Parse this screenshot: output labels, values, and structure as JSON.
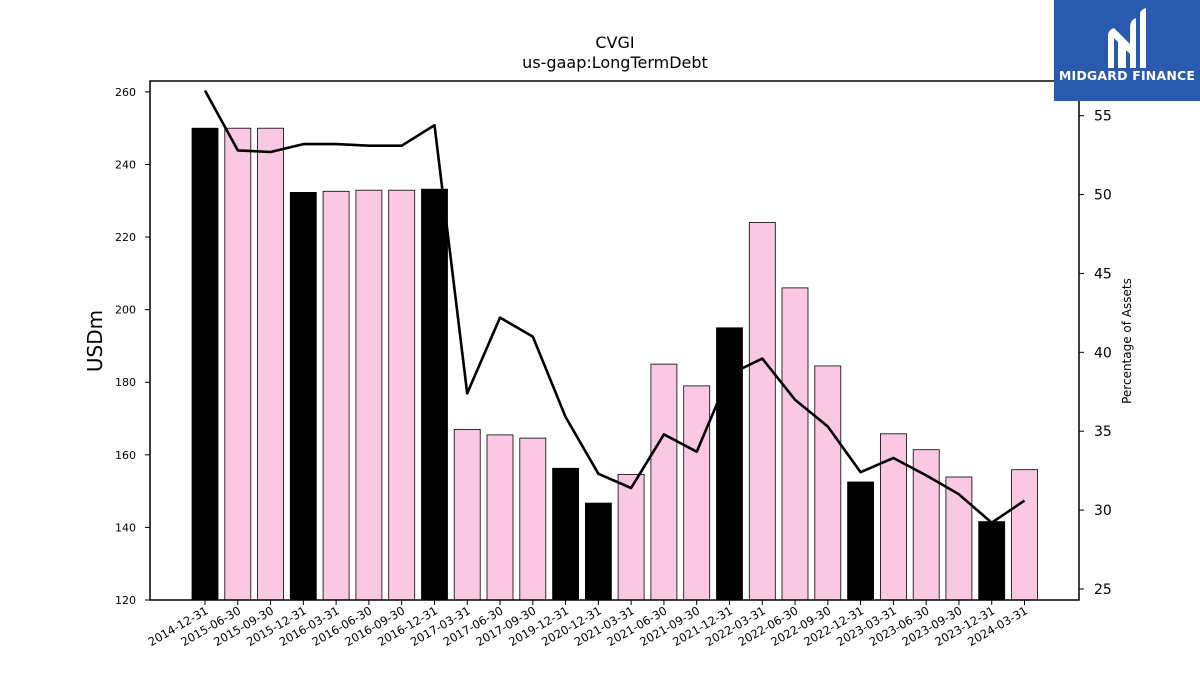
{
  "chart_data": {
    "type": "bar",
    "title": "CVGI",
    "subtitle": "us-gaap:LongTermDebt",
    "ylabel": "USDm",
    "y2label": "Percentage of Assets",
    "ylim": [
      120,
      263
    ],
    "y2lim": [
      24.3,
      57.2
    ],
    "yticks": [
      120,
      140,
      160,
      180,
      200,
      220,
      240,
      260
    ],
    "y2ticks": [
      25,
      30,
      35,
      40,
      45,
      50,
      55
    ],
    "categories": [
      "2014-12-31",
      "2015-06-30",
      "2015-09-30",
      "2015-12-31",
      "2016-03-31",
      "2016-06-30",
      "2016-09-30",
      "2016-12-31",
      "2017-03-31",
      "2017-06-30",
      "2017-09-30",
      "2019-12-31",
      "2020-12-31",
      "2021-03-31",
      "2021-06-30",
      "2021-09-30",
      "2021-12-31",
      "2022-03-31",
      "2022-06-30",
      "2022-09-30",
      "2022-12-31",
      "2023-03-31",
      "2023-06-30",
      "2023-09-30",
      "2023-12-31",
      "2024-03-31"
    ],
    "series": [
      {
        "type": "bar",
        "values": [
          250,
          250,
          250,
          232.3,
          232.6,
          232.9,
          232.9,
          233.2,
          167.0,
          165.5,
          164.6,
          156.3,
          146.7,
          154.6,
          185.0,
          179.0,
          195.0,
          224.0,
          206.0,
          184.5,
          152.5,
          165.8,
          161.4,
          153.9,
          141.6,
          155.9
        ],
        "colors": [
          "#000000",
          "#fbc8e4",
          "#fbc8e4",
          "#000000",
          "#fbc8e4",
          "#fbc8e4",
          "#fbc8e4",
          "#000000",
          "#fbc8e4",
          "#fbc8e4",
          "#fbc8e4",
          "#000000",
          "#000000",
          "#fbc8e4",
          "#fbc8e4",
          "#fbc8e4",
          "#000000",
          "#fbc8e4",
          "#fbc8e4",
          "#fbc8e4",
          "#000000",
          "#fbc8e4",
          "#fbc8e4",
          "#fbc8e4",
          "#000000",
          "#fbc8e4"
        ]
      },
      {
        "type": "line",
        "axis": "right",
        "values": [
          56.6,
          52.8,
          52.7,
          53.2,
          53.2,
          53.1,
          53.1,
          54.4,
          37.4,
          42.2,
          41.0,
          35.9,
          32.3,
          31.4,
          34.8,
          33.7,
          38.6,
          39.6,
          37.0,
          35.3,
          32.4,
          33.3,
          32.2,
          31.0,
          29.2,
          30.6
        ],
        "color": "#000000"
      }
    ]
  },
  "logo": {
    "text": "MIDGARD FINANCE",
    "color": "#2a5aad"
  }
}
